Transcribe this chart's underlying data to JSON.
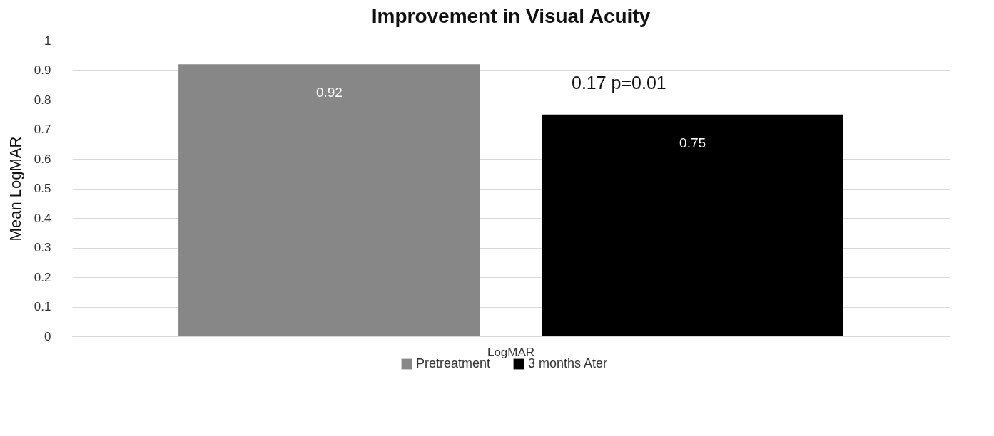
{
  "chart_data": {
    "type": "bar",
    "title": "Improvement in Visual Acuity",
    "ylabel": "Mean LogMAR",
    "categories": [
      "LogMAR"
    ],
    "series": [
      {
        "name": "Pretreatment",
        "color": "#878787",
        "values": [
          0.92
        ]
      },
      {
        "name": "3 months Ater",
        "color": "#000000",
        "values": [
          0.75
        ]
      }
    ],
    "ylim": [
      0,
      1
    ],
    "yticks": [
      0,
      0.1,
      0.2,
      0.3,
      0.4,
      0.5,
      0.6,
      0.7,
      0.8,
      0.9,
      1
    ],
    "grid": "y",
    "legend": "bottom",
    "data_labels": true,
    "annotations": [
      "0.17 p=0.01"
    ]
  }
}
